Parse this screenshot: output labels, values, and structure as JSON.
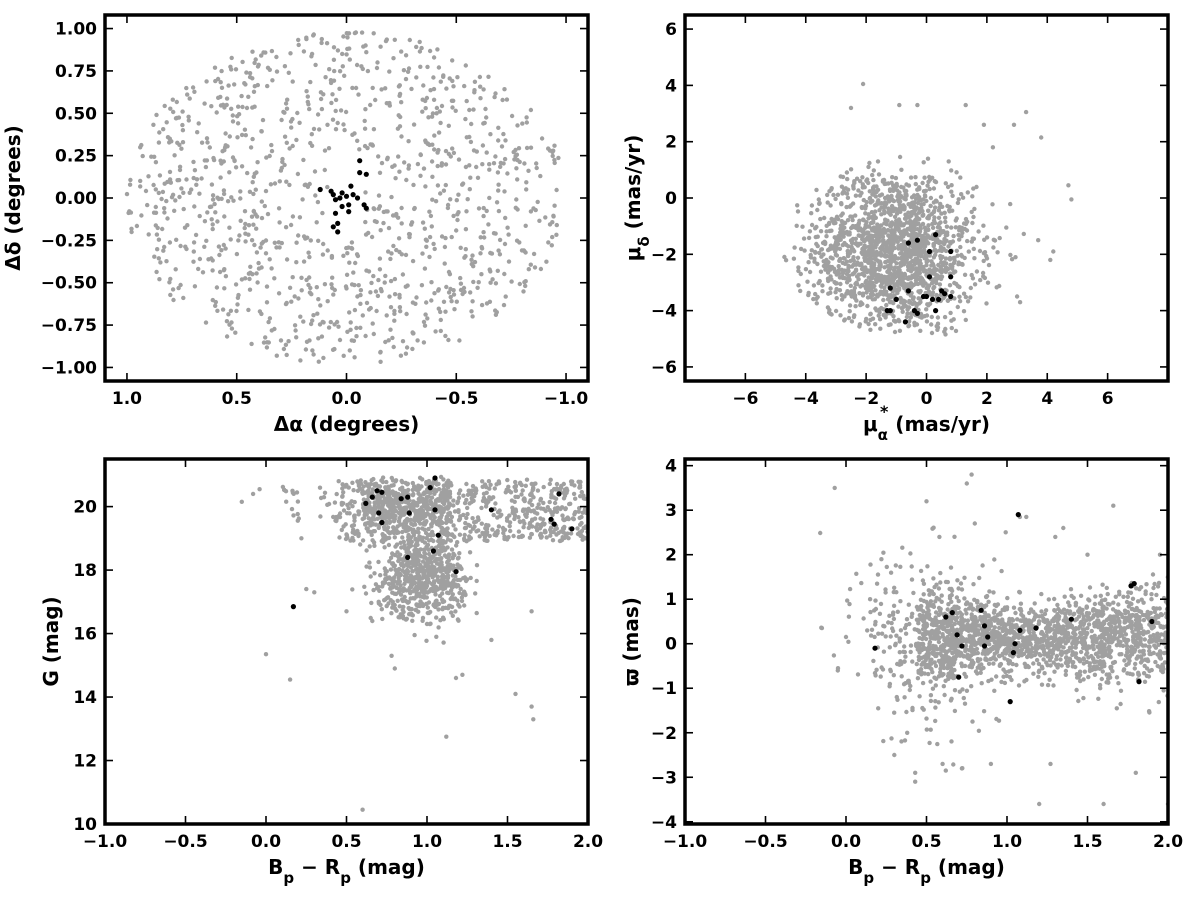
{
  "chart_data": [
    {
      "id": "sky",
      "type": "scatter",
      "xlabel_main": "Δα (degrees)",
      "ylabel_main": "Δδ (degrees)",
      "xlim": [
        1.1,
        -1.1
      ],
      "ylim": [
        -1.08,
        1.08
      ],
      "xticks": [
        1.0,
        0.5,
        0.0,
        -0.5,
        -1.0
      ],
      "xtick_labels": [
        "1.0",
        "0.5",
        "0.0",
        "−0.5",
        "−1.0"
      ],
      "yticks": [
        -1.0,
        -0.75,
        -0.5,
        -0.25,
        0.0,
        0.25,
        0.5,
        0.75,
        1.0
      ],
      "ytick_labels": [
        "−1.00",
        "−0.75",
        "−0.50",
        "−0.25",
        "0.00",
        "0.25",
        "0.50",
        "0.75",
        "1.00"
      ],
      "series": [
        {
          "role": "field",
          "color": "#a0a0a0",
          "points": []
        },
        {
          "role": "members",
          "color": "#000000",
          "points": [
            [
              0.12,
              0.05
            ],
            [
              0.07,
              0.04
            ],
            [
              0.06,
              0.02
            ],
            [
              0.05,
              -0.01
            ],
            [
              0.03,
              0.0
            ],
            [
              0.02,
              0.03
            ],
            [
              0.0,
              0.01
            ],
            [
              -0.02,
              0.07
            ],
            [
              -0.03,
              0.02
            ],
            [
              -0.05,
              0.0
            ],
            [
              0.02,
              -0.05
            ],
            [
              -0.01,
              -0.04
            ],
            [
              0.05,
              -0.09
            ],
            [
              -0.01,
              -0.08
            ],
            [
              0.06,
              -0.17
            ],
            [
              0.04,
              -0.15
            ],
            [
              0.04,
              -0.2
            ],
            [
              -0.06,
              0.22
            ],
            [
              -0.06,
              0.15
            ],
            [
              -0.09,
              0.14
            ],
            [
              -0.08,
              -0.04
            ],
            [
              -0.09,
              -0.06
            ]
          ]
        }
      ]
    },
    {
      "id": "pm",
      "type": "scatter",
      "xlabel_main": "μ",
      "xlabel_sub": "α",
      "xlabel_sup": "*",
      "xlabel_unit": " (mas/yr)",
      "ylabel_main": "μ",
      "ylabel_sub": "δ",
      "ylabel_unit": " (mas/yr)",
      "xlim": [
        -8.0,
        8.0
      ],
      "ylim": [
        -6.5,
        6.5
      ],
      "xticks": [
        -6,
        -4,
        -2,
        0,
        2,
        4,
        6
      ],
      "xtick_labels": [
        "−6",
        "−4",
        "−2",
        "0",
        "2",
        "4",
        "6"
      ],
      "yticks": [
        -6,
        -4,
        -2,
        0,
        2,
        4,
        6
      ],
      "ytick_labels": [
        "−6",
        "−4",
        "−2",
        "0",
        "2",
        "4",
        "6"
      ],
      "series": [
        {
          "role": "field",
          "color": "#a0a0a0",
          "points": []
        },
        {
          "role": "members",
          "color": "#000000",
          "points": [
            [
              -0.6,
              -1.6
            ],
            [
              -0.3,
              -1.5
            ],
            [
              0.3,
              -1.3
            ],
            [
              0.8,
              -1.9
            ],
            [
              0.1,
              -1.9
            ],
            [
              0.1,
              -2.8
            ],
            [
              0.8,
              -2.8
            ],
            [
              -1.2,
              -3.2
            ],
            [
              -0.6,
              -3.3
            ],
            [
              0.5,
              -3.3
            ],
            [
              0.6,
              -3.4
            ],
            [
              -0.1,
              -3.5
            ],
            [
              0.2,
              -3.6
            ],
            [
              0.4,
              -3.6
            ],
            [
              0.0,
              -3.5
            ],
            [
              0.8,
              -3.5
            ],
            [
              -1.0,
              -3.6
            ],
            [
              -1.2,
              -4.0
            ],
            [
              -1.3,
              -4.0
            ],
            [
              -0.4,
              -4.0
            ],
            [
              -0.3,
              -4.1
            ],
            [
              0.3,
              -4.0
            ],
            [
              -0.7,
              -4.4
            ]
          ]
        }
      ]
    },
    {
      "id": "cmd",
      "type": "scatter",
      "xlabel_main": "B",
      "xlabel_sub": "p",
      "xlabel_mid": " − R",
      "xlabel_sub2": "p",
      "xlabel_unit": " (mag)",
      "ylabel_main": "G (mag)",
      "xlim": [
        -1.0,
        2.0
      ],
      "ylim": [
        10.0,
        21.5
      ],
      "xticks": [
        -1.0,
        -0.5,
        0.0,
        0.5,
        1.0,
        1.5,
        2.0
      ],
      "xtick_labels": [
        "−1.0",
        "−0.5",
        "0.0",
        "0.5",
        "1.0",
        "1.5",
        "2.0"
      ],
      "yticks": [
        10,
        12,
        14,
        16,
        18,
        20
      ],
      "ytick_labels": [
        "10",
        "12",
        "14",
        "16",
        "18",
        "20"
      ],
      "series": [
        {
          "role": "field",
          "color": "#a0a0a0",
          "points": [
            [
              -0.15,
              20.15
            ],
            [
              -0.08,
              20.4
            ],
            [
              -0.04,
              20.55
            ],
            [
              0.0,
              15.35
            ],
            [
              0.15,
              14.55
            ],
            [
              0.22,
              19.0
            ],
            [
              0.25,
              17.4
            ],
            [
              0.3,
              17.3
            ],
            [
              0.5,
              16.7
            ],
            [
              0.6,
              10.45
            ],
            [
              0.7,
              17.0
            ],
            [
              0.78,
              15.3
            ],
            [
              0.8,
              14.9
            ],
            [
              1.12,
              12.75
            ],
            [
              1.18,
              14.6
            ],
            [
              1.22,
              14.7
            ],
            [
              1.4,
              15.8
            ],
            [
              1.55,
              14.1
            ],
            [
              1.65,
              13.7
            ],
            [
              1.66,
              13.3
            ],
            [
              1.65,
              16.7
            ],
            [
              0.9,
              16.6
            ],
            [
              1.0,
              16.3
            ],
            [
              1.1,
              16.5
            ]
          ]
        },
        {
          "role": "members",
          "color": "#000000",
          "points": [
            [
              0.17,
              16.85
            ],
            [
              0.62,
              20.1
            ],
            [
              0.66,
              20.3
            ],
            [
              0.69,
              20.5
            ],
            [
              0.72,
              20.45
            ],
            [
              0.7,
              19.8
            ],
            [
              0.72,
              19.5
            ],
            [
              0.84,
              20.25
            ],
            [
              0.88,
              20.3
            ],
            [
              0.89,
              19.8
            ],
            [
              0.88,
              18.4
            ],
            [
              1.02,
              20.6
            ],
            [
              1.05,
              20.9
            ],
            [
              1.05,
              19.9
            ],
            [
              1.07,
              19.1
            ],
            [
              1.04,
              18.6
            ],
            [
              1.18,
              17.95
            ],
            [
              1.4,
              19.9
            ],
            [
              1.77,
              19.6
            ],
            [
              1.79,
              19.45
            ],
            [
              1.82,
              20.4
            ],
            [
              1.9,
              19.3
            ]
          ]
        }
      ]
    },
    {
      "id": "plx",
      "type": "scatter",
      "xlabel_main": "B",
      "xlabel_sub": "p",
      "xlabel_mid": " − R",
      "xlabel_sub2": "p",
      "xlabel_unit": " (mag)",
      "ylabel_main": "ϖ (mas)",
      "xlim": [
        -1.0,
        2.0
      ],
      "ylim": [
        -4.05,
        4.15
      ],
      "xticks": [
        -1.0,
        -0.5,
        0.0,
        0.5,
        1.0,
        1.5,
        2.0
      ],
      "xtick_labels": [
        "−1.0",
        "−0.5",
        "0.0",
        "0.5",
        "1.0",
        "1.5",
        "2.0"
      ],
      "yticks": [
        -4,
        -3,
        -2,
        -1,
        0,
        1,
        2,
        3,
        4
      ],
      "ytick_labels": [
        "−4",
        "−3",
        "−2",
        "−1",
        "0",
        "1",
        "2",
        "3",
        "4"
      ],
      "series": [
        {
          "role": "field",
          "color": "#a0a0a0",
          "points": [
            [
              -0.15,
              0.35
            ],
            [
              -0.07,
              3.5
            ],
            [
              -0.05,
              -0.55
            ],
            [
              0.0,
              0.15
            ],
            [
              0.15,
              1.0
            ],
            [
              0.22,
              1.9
            ],
            [
              0.2,
              -1.45
            ],
            [
              0.38,
              -2.0
            ],
            [
              0.43,
              -2.9
            ],
            [
              0.43,
              -3.1
            ],
            [
              0.6,
              -2.7
            ],
            [
              0.62,
              -2.85
            ],
            [
              0.72,
              -2.8
            ],
            [
              0.75,
              3.6
            ],
            [
              0.78,
              3.8
            ],
            [
              0.8,
              2.7
            ],
            [
              1.08,
              2.85
            ],
            [
              1.12,
              2.85
            ],
            [
              1.2,
              -3.6
            ],
            [
              1.27,
              -2.7
            ],
            [
              1.3,
              2.4
            ],
            [
              1.35,
              2.6
            ],
            [
              1.5,
              2.0
            ],
            [
              1.6,
              -3.6
            ],
            [
              1.66,
              3.1
            ],
            [
              1.8,
              -2.9
            ],
            [
              1.95,
              2.0
            ],
            [
              2.0,
              -3.6
            ],
            [
              0.5,
              3.2
            ],
            [
              0.58,
              2.4
            ],
            [
              0.3,
              -2.5
            ],
            [
              0.9,
              -2.7
            ]
          ]
        },
        {
          "role": "members",
          "color": "#000000",
          "points": [
            [
              0.18,
              -0.1
            ],
            [
              0.62,
              0.6
            ],
            [
              0.66,
              0.7
            ],
            [
              0.69,
              0.2
            ],
            [
              0.72,
              -0.05
            ],
            [
              0.7,
              -0.75
            ],
            [
              0.84,
              0.75
            ],
            [
              0.86,
              0.4
            ],
            [
              0.86,
              -0.05
            ],
            [
              0.88,
              0.15
            ],
            [
              1.02,
              -1.3
            ],
            [
              1.04,
              -0.2
            ],
            [
              1.05,
              0.0
            ],
            [
              1.07,
              2.9
            ],
            [
              1.08,
              0.3
            ],
            [
              1.18,
              0.35
            ],
            [
              1.4,
              0.55
            ],
            [
              1.77,
              1.3
            ],
            [
              1.79,
              1.35
            ],
            [
              1.82,
              -0.85
            ],
            [
              1.9,
              0.5
            ]
          ]
        }
      ]
    }
  ]
}
